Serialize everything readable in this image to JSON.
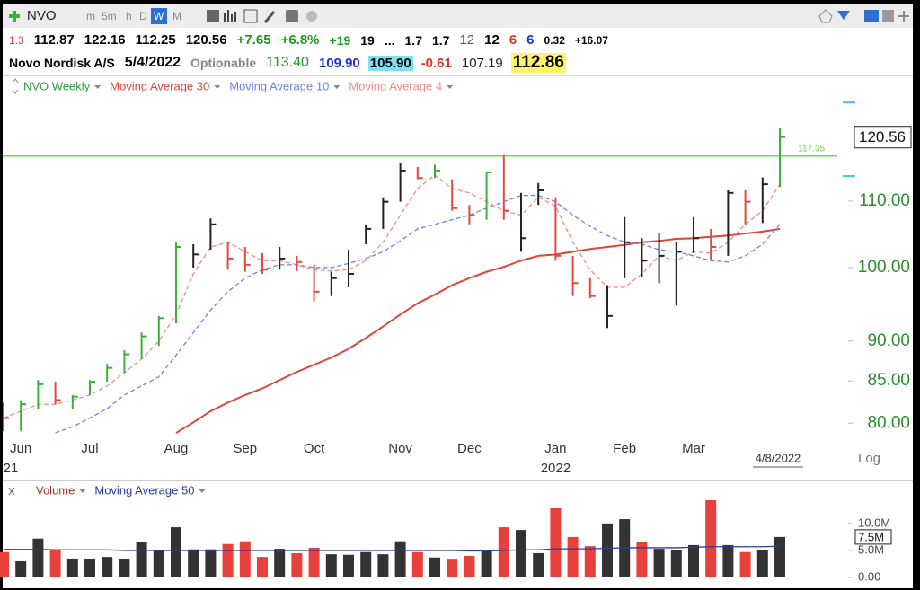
{
  "toolbar": {
    "symbol": "NVO",
    "timeframes": [
      "m",
      "5m",
      "h",
      "D",
      "W",
      "M"
    ]
  },
  "quote_line": [
    "1.3",
    "112.87",
    "122.16",
    "112.25",
    "120.56",
    "+7.65",
    "+6.8%",
    "+19",
    "19",
    "...",
    "1.7",
    "1.7",
    "12",
    "12",
    "6",
    "6",
    "0.32",
    "+16.07"
  ],
  "info_line": [
    "Novo Nordisk A/S",
    "5/4/2022",
    "Optionable",
    "113.40",
    "109.90",
    "105.90",
    "-0.61",
    "107.19",
    "112.86"
  ],
  "chart_data": [
    {
      "type": "hlc",
      "name": "NVO Weekly",
      "name_color": "#2e9e3e",
      "categories": [
        null,
        "Jun",
        null,
        null,
        null,
        "Jul",
        null,
        null,
        null,
        null,
        "Aug",
        null,
        null,
        null,
        "Sep",
        null,
        null,
        null,
        "Oct",
        null,
        null,
        null,
        null,
        "Nov",
        null,
        null,
        null,
        "Dec",
        null,
        null,
        null,
        null,
        "Jan",
        null,
        null,
        null,
        "Feb",
        null,
        null,
        null,
        "Mar",
        null,
        null,
        null,
        null,
        null
      ],
      "year_labels": [
        "21",
        null,
        null,
        null,
        null,
        null,
        null,
        null,
        null,
        null,
        null,
        null,
        null,
        null,
        null,
        null,
        null,
        null,
        null,
        null,
        null,
        null,
        null,
        null,
        null,
        null,
        null,
        null,
        null,
        null,
        null,
        null,
        "2022",
        null,
        null,
        null,
        null,
        null,
        null,
        null,
        null,
        null,
        null,
        null,
        null,
        null
      ],
      "date_label": "4/8/2022",
      "high": [
        82.4,
        82.7,
        85.1,
        84.9,
        83.3,
        85.1,
        87.1,
        88.8,
        91.1,
        93.3,
        103.7,
        103.4,
        107.3,
        103.7,
        103.0,
        102.1,
        103.0,
        101.7,
        100.4,
        99.4,
        102.6,
        106.4,
        110.6,
        116.1,
        115.5,
        115.9,
        113.5,
        109.4,
        114.6,
        117.5,
        111.3,
        112.9,
        110.6,
        101.7,
        98.5,
        97.5,
        107.5,
        104.3,
        105.0,
        103.7,
        107.5,
        105.7,
        111.7,
        111.7,
        113.8,
        122.16
      ],
      "low": [
        79.1,
        79.1,
        81.7,
        82.2,
        81.7,
        83.3,
        84.9,
        86.0,
        87.7,
        89.4,
        92.3,
        100.0,
        102.6,
        99.7,
        99.4,
        99.1,
        99.7,
        99.5,
        95.3,
        96.0,
        97.2,
        103.4,
        105.7,
        109.9,
        113.5,
        113.7,
        108.5,
        106.4,
        107.1,
        107.1,
        102.3,
        109.4,
        101.0,
        96.0,
        95.7,
        91.7,
        98.5,
        98.7,
        97.8,
        94.7,
        102.1,
        101.0,
        101.7,
        106.4,
        106.6,
        112.25
      ],
      "close": [
        80.6,
        82.2,
        84.6,
        82.7,
        83.1,
        84.9,
        86.6,
        88.3,
        90.6,
        93.0,
        103.0,
        101.9,
        106.4,
        101.3,
        100.4,
        99.7,
        101.3,
        100.8,
        96.6,
        98.5,
        99.1,
        105.7,
        109.9,
        114.9,
        113.7,
        114.9,
        108.9,
        107.8,
        114.6,
        108.5,
        104.3,
        111.7,
        101.7,
        97.8,
        96.0,
        93.3,
        103.7,
        101.0,
        101.7,
        102.3,
        104.3,
        103.0,
        111.3,
        109.9,
        112.7,
        120.56
      ],
      "bar_colors": [
        "#e04a40",
        "#3bb03b",
        "#3bb03b",
        "#e04a40",
        "#3bb03b",
        "#3bb03b",
        "#3bb03b",
        "#3bb03b",
        "#3bb03b",
        "#3bb03b",
        "#3bb03b",
        "#222222",
        "#222222",
        "#e04a40",
        "#e04a40",
        "#e04a40",
        "#222222",
        "#e04a40",
        "#e04a40",
        "#222222",
        "#222222",
        "#222222",
        "#222222",
        "#222222",
        "#e04a40",
        "#3bb03b",
        "#e04a40",
        "#e04a40",
        "#3bb03b",
        "#e04a40",
        "#222222",
        "#222222",
        "#e04a40",
        "#e04a40",
        "#e04a40",
        "#222222",
        "#222222",
        "#222222",
        "#222222",
        "#222222",
        "#222222",
        "#e04a40",
        "#222222",
        "#e04a40",
        "#222222",
        "#3bb03b"
      ],
      "series": [
        {
          "name": "Moving Average 30",
          "color": "#e0453c",
          "dashed": false,
          "values": [
            null,
            null,
            null,
            null,
            null,
            null,
            null,
            null,
            null,
            null,
            78.9,
            80.1,
            81.4,
            82.4,
            83.3,
            84.1,
            85.1,
            86.1,
            87.0,
            87.9,
            89.0,
            90.4,
            91.9,
            93.5,
            95.0,
            96.2,
            97.5,
            98.5,
            99.4,
            100.1,
            101.0,
            101.7,
            101.9,
            102.3,
            102.7,
            103.0,
            103.3,
            103.7,
            103.9,
            104.2,
            104.3,
            104.5,
            104.7,
            105.0,
            105.3,
            105.7
          ]
        },
        {
          "name": "Moving Average 10",
          "color": "#7080e8",
          "dashed": true,
          "values": [
            null,
            null,
            null,
            78.9,
            79.6,
            80.6,
            81.7,
            83.3,
            84.4,
            85.5,
            88.2,
            91.1,
            94.1,
            96.6,
            98.5,
            99.7,
            100.4,
            100.4,
            100.0,
            100.0,
            100.6,
            101.3,
            102.3,
            103.9,
            105.7,
            106.4,
            107.1,
            107.8,
            108.9,
            109.9,
            110.9,
            110.9,
            109.9,
            107.8,
            106.1,
            104.7,
            103.7,
            103.4,
            102.6,
            102.3,
            101.7,
            101.0,
            100.8,
            101.7,
            103.4,
            106.4
          ]
        },
        {
          "name": "Moving Average 4",
          "color": "#ec8f82",
          "dashed": true,
          "values": [
            80.6,
            81.4,
            82.2,
            82.2,
            82.7,
            83.3,
            84.4,
            86.0,
            87.7,
            90.0,
            93.5,
            99.1,
            103.0,
            103.7,
            102.3,
            101.0,
            101.0,
            100.4,
            99.7,
            99.5,
            99.7,
            101.0,
            103.7,
            107.8,
            112.0,
            114.2,
            112.0,
            111.3,
            109.9,
            108.5,
            107.8,
            110.6,
            109.2,
            103.7,
            99.7,
            97.2,
            97.2,
            99.1,
            101.7,
            101.0,
            102.3,
            102.1,
            103.7,
            106.4,
            108.5,
            112.7
          ]
        }
      ],
      "hline": 117.35,
      "hline_color": "#66dd55",
      "ylim": [
        78.6,
        128.2
      ],
      "log_scale": true,
      "scale_label": "Log",
      "yticks": [
        {
          "value": 80,
          "label": "80.00"
        },
        {
          "value": 85,
          "label": "85.00"
        },
        {
          "value": 90,
          "label": "90.00"
        },
        {
          "value": 100,
          "label": "100.00"
        },
        {
          "value": 110,
          "label": "110.00"
        }
      ]
    },
    {
      "type": "bar",
      "name": "Volume",
      "name_color": "#a0302a",
      "values": [
        4.7,
        3.0,
        7.2,
        5.0,
        3.5,
        3.5,
        3.8,
        3.5,
        6.5,
        5.0,
        9.3,
        5.2,
        5.2,
        6.2,
        6.7,
        3.8,
        5.3,
        4.5,
        5.5,
        4.3,
        4.2,
        4.7,
        4.3,
        6.7,
        4.7,
        3.7,
        3.3,
        4.0,
        5.0,
        9.3,
        8.8,
        4.5,
        12.8,
        7.5,
        5.8,
        10.0,
        10.8,
        6.5,
        5.3,
        5.0,
        6.0,
        14.3,
        6.0,
        4.7,
        5.0,
        7.5
      ],
      "colors": [
        "#e8403a",
        "#333333",
        "#333333",
        "#e8403a",
        "#333333",
        "#333333",
        "#333333",
        "#333333",
        "#333333",
        "#333333",
        "#333333",
        "#333333",
        "#333333",
        "#e8403a",
        "#e8403a",
        "#e8403a",
        "#333333",
        "#e8403a",
        "#e8403a",
        "#333333",
        "#333333",
        "#333333",
        "#333333",
        "#333333",
        "#e8403a",
        "#333333",
        "#e8403a",
        "#e8403a",
        "#333333",
        "#e8403a",
        "#333333",
        "#333333",
        "#e8403a",
        "#e8403a",
        "#e8403a",
        "#333333",
        "#333333",
        "#e8403a",
        "#333333",
        "#333333",
        "#333333",
        "#e8403a",
        "#333333",
        "#e8403a",
        "#333333",
        "#333333"
      ],
      "series": [
        {
          "name": "Moving Average 50",
          "color": "#2b3a9e",
          "values": [
            5.2,
            5.2,
            5.2,
            5.1,
            5.1,
            5.1,
            5.1,
            5.0,
            5.0,
            5.0,
            5.0,
            5.0,
            5.0,
            5.0,
            5.0,
            5.0,
            5.0,
            5.0,
            5.0,
            5.0,
            5.0,
            5.0,
            5.0,
            5.0,
            5.0,
            5.0,
            5.0,
            4.9,
            4.9,
            5.0,
            5.1,
            5.1,
            5.3,
            5.3,
            5.3,
            5.4,
            5.5,
            5.5,
            5.5,
            5.5,
            5.6,
            5.7,
            5.7,
            5.7,
            5.7,
            5.8
          ]
        }
      ],
      "marker": {
        "value": 7.5,
        "label": "7.5M"
      },
      "ylim": [
        0,
        14.8
      ],
      "yticks": [
        {
          "value": 0,
          "label": "0.00"
        },
        {
          "value": 5,
          "label": "5.0M"
        },
        {
          "value": 10,
          "label": "10.0M"
        }
      ]
    }
  ]
}
